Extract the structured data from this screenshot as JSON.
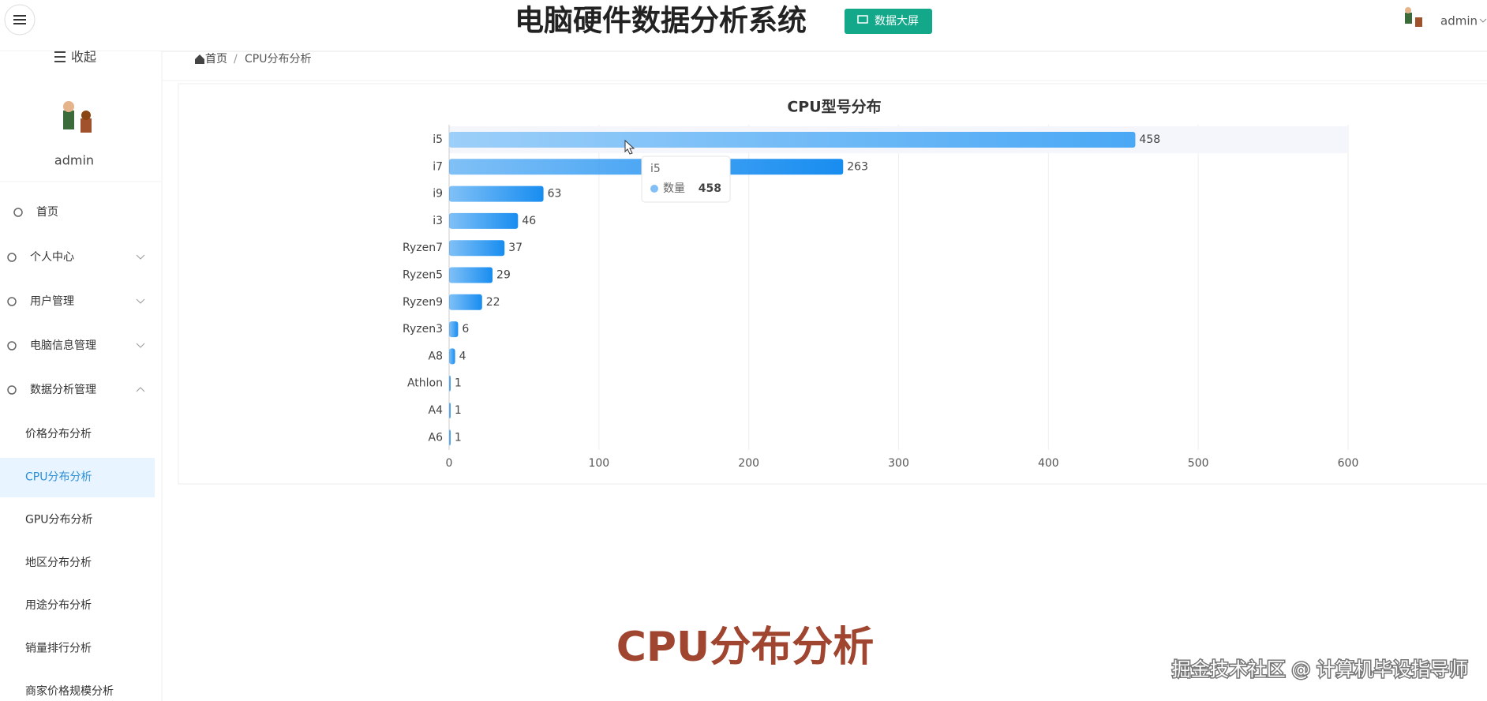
{
  "header": {
    "title": "电脑硬件数据分析系统",
    "button": "数据大屏",
    "user": "admin"
  },
  "sidebar": {
    "collapse": "收起",
    "username": "admin",
    "menu": [
      "首页",
      "个人中心",
      "用户管理",
      "电脑信息管理",
      "数据分析管理"
    ],
    "submenu": [
      "价格分布分析",
      "CPU分布分析",
      "GPU分布分析",
      "地区分布分析",
      "用途分布分析",
      "销量排行分析",
      "商家价格规模分析"
    ]
  },
  "breadcrumb": [
    "首页",
    "CPU分布分析"
  ],
  "chart_data": {
    "type": "hbar",
    "title": "CPU型号分布",
    "categories": [
      "i5",
      "i7",
      "i9",
      "i3",
      "Ryzen7",
      "Ryzen5",
      "Ryzen9",
      "Ryzen3",
      "A8",
      "Athlon",
      "A4",
      "A6"
    ],
    "series": [
      {
        "name": "数量",
        "color": "#188df0",
        "values": [
          458,
          263,
          63,
          46,
          37,
          29,
          22,
          6,
          4,
          1,
          1,
          1
        ]
      }
    ],
    "xlim": [
      0,
      600
    ],
    "xticks": [
      0,
      100,
      200,
      300,
      400,
      500,
      600
    ],
    "grid": true
  },
  "caption": "CPU分布分析",
  "watermark": "掘金技术社区 @ 计算机毕设指导师"
}
